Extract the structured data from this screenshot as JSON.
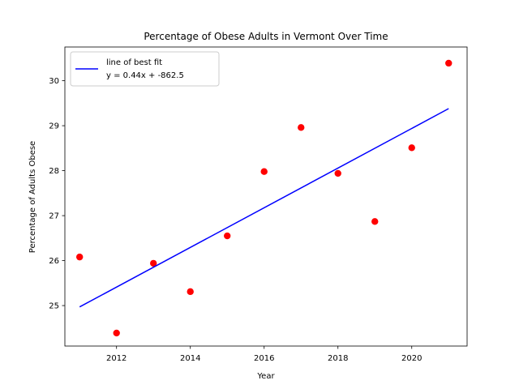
{
  "chart_data": {
    "type": "scatter",
    "title": "Percentage of Obese Adults in Vermont Over Time",
    "xlabel": "Year",
    "ylabel": "Percentage of Adults Obese",
    "xlim": [
      2010.6,
      2021.5
    ],
    "ylim": [
      24.1,
      30.75
    ],
    "xticks": [
      2012,
      2014,
      2016,
      2018,
      2020
    ],
    "yticks": [
      25,
      26,
      27,
      28,
      29,
      30
    ],
    "grid": false,
    "legend_position": "upper-left",
    "series": [
      {
        "kind": "scatter",
        "color": "#ff0000",
        "x": [
          2011,
          2012,
          2013,
          2014,
          2015,
          2016,
          2017,
          2018,
          2019,
          2020,
          2021
        ],
        "y": [
          26.08,
          24.39,
          25.94,
          25.31,
          26.55,
          27.98,
          28.96,
          27.94,
          26.87,
          28.51,
          30.39
        ]
      },
      {
        "kind": "line",
        "name": "line of best fit",
        "name_line2": "y = 0.44x + -862.5",
        "color": "#0000ff",
        "x": [
          2011,
          2021
        ],
        "y": [
          24.97,
          29.38
        ]
      }
    ]
  }
}
